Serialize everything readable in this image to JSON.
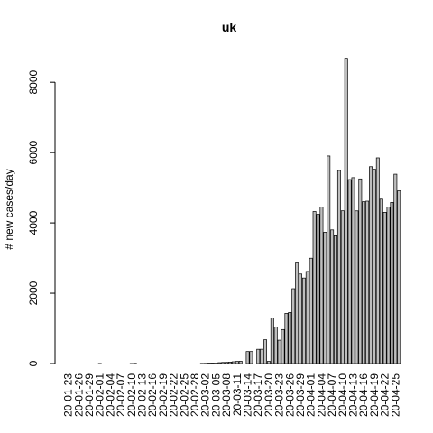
{
  "chart_data": {
    "type": "bar",
    "title": "uk",
    "xlabel": "",
    "ylabel": "# new cases/day",
    "ylim": [
      0,
      8800
    ],
    "yticks": [
      0,
      2000,
      4000,
      6000,
      8000
    ],
    "grid": false,
    "legend": "none",
    "bar_fill": "#bebebe",
    "bar_stroke": "#000000",
    "tick_labels": [
      "20-01-23",
      "20-01-26",
      "20-01-29",
      "20-02-01",
      "20-02-04",
      "20-02-07",
      "20-02-10",
      "20-02-13",
      "20-02-16",
      "20-02-19",
      "20-02-22",
      "20-02-25",
      "20-02-28",
      "20-03-02",
      "20-03-05",
      "20-03-08",
      "20-03-11",
      "20-03-14",
      "20-03-17",
      "20-03-20",
      "20-03-23",
      "20-03-26",
      "20-03-29",
      "20-04-01",
      "20-04-04",
      "20-04-07",
      "20-04-10",
      "20-04-13",
      "20-04-16",
      "20-04-19",
      "20-04-22",
      "20-04-25"
    ],
    "tick_every": 3,
    "values": [
      0,
      0,
      0,
      0,
      0,
      0,
      0,
      0,
      0,
      2,
      0,
      0,
      0,
      0,
      0,
      0,
      0,
      0,
      1,
      6,
      0,
      0,
      0,
      0,
      0,
      0,
      0,
      0,
      0,
      0,
      0,
      0,
      0,
      0,
      0,
      0,
      0,
      0,
      4,
      6,
      12,
      13,
      10,
      25,
      32,
      34,
      42,
      51,
      62,
      67,
      0,
      342,
      342,
      0,
      406,
      407,
      676,
      63,
      1294,
      1035,
      665,
      967,
      1427,
      1452,
      2129,
      2885,
      2546,
      2433,
      2619,
      2996,
      4324,
      4244,
      4450,
      3735,
      5903,
      3802,
      3634,
      5491,
      4344,
      8681,
      5233,
      5288,
      4342,
      5252,
      4603,
      4618,
      5599,
      5525,
      5850,
      4676,
      4301,
      4451,
      4583,
      5386,
      4913
    ]
  }
}
